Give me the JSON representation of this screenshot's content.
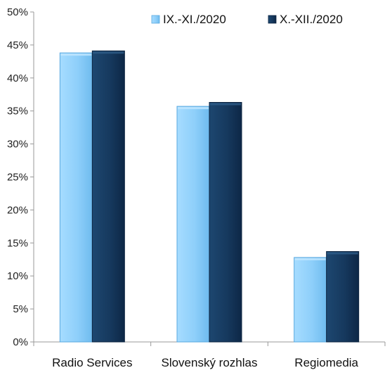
{
  "chart_data": {
    "type": "bar",
    "categories": [
      "Radio Services",
      "Slovenský rozhlas",
      "Regiomedia"
    ],
    "series": [
      {
        "name": "IX.-XI./2020",
        "values": [
          43.8,
          35.7,
          12.8
        ],
        "color": "#8ecffa",
        "color_dark": "#5aa9df"
      },
      {
        "name": "X.-XII./2020",
        "values": [
          44.1,
          36.3,
          13.7
        ],
        "color": "#16395e",
        "color_dark": "#0c2440"
      }
    ],
    "y_ticks": [
      "0%",
      "5%",
      "10%",
      "15%",
      "20%",
      "25%",
      "30%",
      "35%",
      "40%",
      "45%",
      "50%"
    ],
    "ylim": [
      0,
      50
    ],
    "legend_position": "top-right",
    "grid": false
  }
}
